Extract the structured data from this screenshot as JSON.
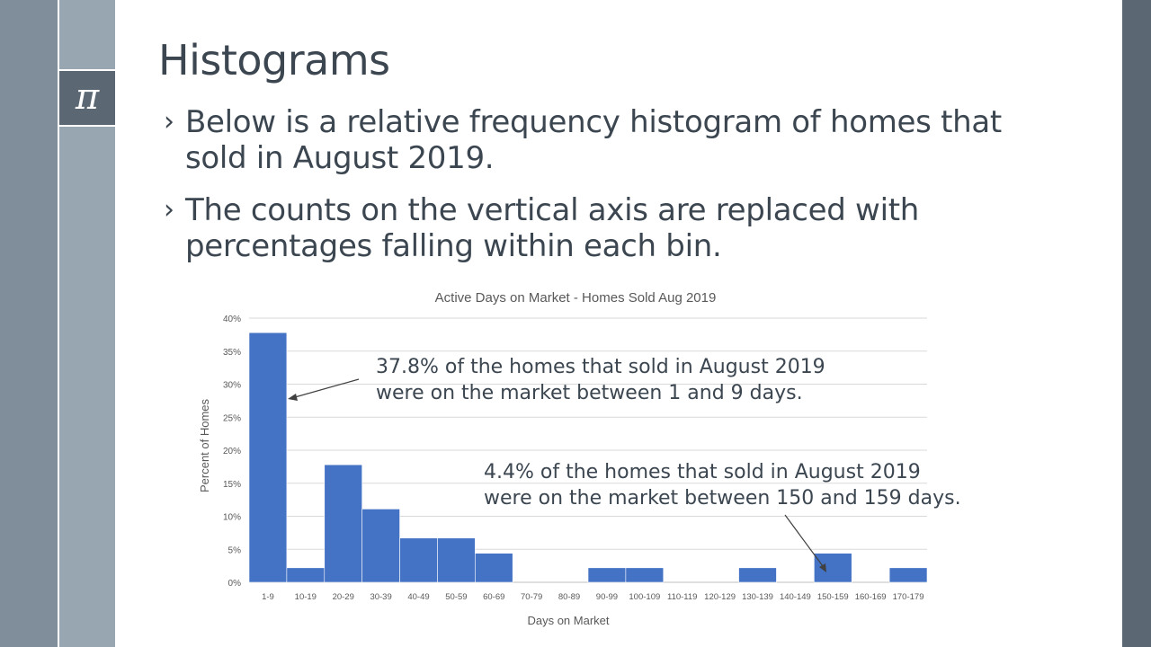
{
  "slide": {
    "title": "Histograms",
    "icon": "pi-icon",
    "icon_glyph": "π",
    "bullet_glyph": "›",
    "bullets": [
      {
        "line1": "Below is a relative frequency histogram of homes that",
        "line2": "sold in August 2019."
      },
      {
        "line1": "The counts on the vertical axis are replaced with",
        "line2": "percentages falling within each bin."
      }
    ]
  },
  "chart_data": {
    "type": "bar",
    "title": "Active Days on Market - Homes Sold Aug 2019",
    "xlabel": "Days on Market",
    "ylabel": "Percent of Homes",
    "categories": [
      "1-9",
      "10-19",
      "20-29",
      "30-39",
      "40-49",
      "50-59",
      "60-69",
      "70-79",
      "80-89",
      "90-99",
      "100-109",
      "110-119",
      "120-129",
      "130-139",
      "140-149",
      "150-159",
      "160-169",
      "170-179"
    ],
    "values": [
      37.8,
      2.2,
      17.8,
      11.1,
      6.7,
      6.7,
      4.4,
      0,
      0,
      2.2,
      2.2,
      0,
      0,
      2.2,
      0,
      4.4,
      0,
      2.2
    ],
    "yticks": [
      "0%",
      "5%",
      "10%",
      "15%",
      "20%",
      "25%",
      "30%",
      "35%",
      "40%"
    ],
    "ylim": [
      0,
      40
    ],
    "grid": true,
    "bar_color": "#4472c4",
    "annotations": [
      {
        "line1": "37.8% of the homes that sold in August 2019",
        "line2": "were on the market between 1 and 9 days."
      },
      {
        "line1": "4.4% of the homes that sold in August 2019",
        "line2": "were on the market between 150 and 159 days."
      }
    ]
  }
}
